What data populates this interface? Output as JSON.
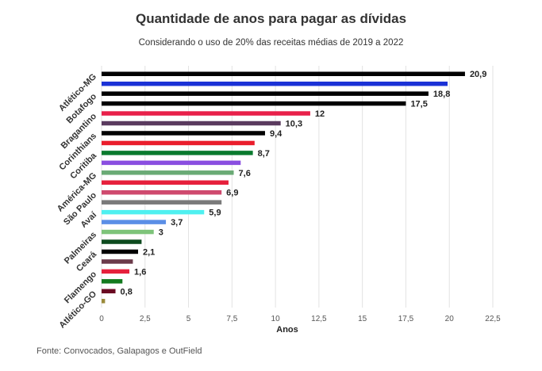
{
  "chart_data": {
    "type": "bar",
    "orientation": "horizontal",
    "title": "Quantidade de anos para pagar as dívidas",
    "subtitle": "Considerando o uso de 20% das receitas médias de 2019 a 2022",
    "xlabel": "Anos",
    "ylabel": "",
    "xlim": [
      0,
      22.5
    ],
    "ticks": [
      0,
      2.5,
      5,
      7.5,
      10,
      12.5,
      15,
      17.5,
      20,
      22.5
    ],
    "tick_labels": [
      "0",
      "2,5",
      "5",
      "7,5",
      "10",
      "12,5",
      "15",
      "17,5",
      "20",
      "22,5"
    ],
    "grid": true,
    "bars": [
      {
        "category": "Atlético-MG",
        "value": 20.9,
        "value_label": "20,9",
        "color": "#000000"
      },
      {
        "category": "",
        "value": 19.9,
        "value_label": "",
        "color": "#1a31d6"
      },
      {
        "category": "Botafogo",
        "value": 18.8,
        "value_label": "18,8",
        "color": "#000000"
      },
      {
        "category": "",
        "value": 17.5,
        "value_label": "17,5",
        "color": "#000000"
      },
      {
        "category": "Bragantino",
        "value": 12,
        "value_label": "12",
        "color": "#e8204a"
      },
      {
        "category": "",
        "value": 10.3,
        "value_label": "10,3",
        "color": "#5a3a5e"
      },
      {
        "category": "Corinthians",
        "value": 9.4,
        "value_label": "9,4",
        "color": "#000000"
      },
      {
        "category": "",
        "value": 8.8,
        "value_label": "",
        "color": "#ea1d2c"
      },
      {
        "category": "Coritiba",
        "value": 8.7,
        "value_label": "8,7",
        "color": "#0a7a2e"
      },
      {
        "category": "",
        "value": 8.0,
        "value_label": "",
        "color": "#8a4ee0"
      },
      {
        "category": "América-MG",
        "value": 7.6,
        "value_label": "7,6",
        "color": "#6aaa75"
      },
      {
        "category": "",
        "value": 7.3,
        "value_label": "",
        "color": "#e6203c"
      },
      {
        "category": "São Paulo",
        "value": 6.9,
        "value_label": "6,9",
        "color": "#cf4a6e"
      },
      {
        "category": "",
        "value": 6.9,
        "value_label": "",
        "color": "#7a7a7a"
      },
      {
        "category": "Avaí",
        "value": 5.9,
        "value_label": "5,9",
        "color": "#4ff0f0"
      },
      {
        "category": "",
        "value": 3.7,
        "value_label": "3,7",
        "color": "#5b8fe6"
      },
      {
        "category": "Palmeiras",
        "value": 3,
        "value_label": "3",
        "color": "#7ec47a"
      },
      {
        "category": "",
        "value": 2.3,
        "value_label": "",
        "color": "#0d4a1e"
      },
      {
        "category": "Ceará",
        "value": 2.1,
        "value_label": "2,1",
        "color": "#000000"
      },
      {
        "category": "",
        "value": 1.8,
        "value_label": "",
        "color": "#6b3a4a"
      },
      {
        "category": "Flamengo",
        "value": 1.6,
        "value_label": "1,6",
        "color": "#e6203c"
      },
      {
        "category": "",
        "value": 1.2,
        "value_label": "",
        "color": "#127a1e"
      },
      {
        "category": "Atlético-GO",
        "value": 0.8,
        "value_label": "0,8",
        "color": "#6a0a22"
      },
      {
        "category": "",
        "value": 0.2,
        "value_label": "",
        "color": "#9a8a3a"
      }
    ]
  },
  "source": "Fonte: Convocados, Galapagos e OutField"
}
